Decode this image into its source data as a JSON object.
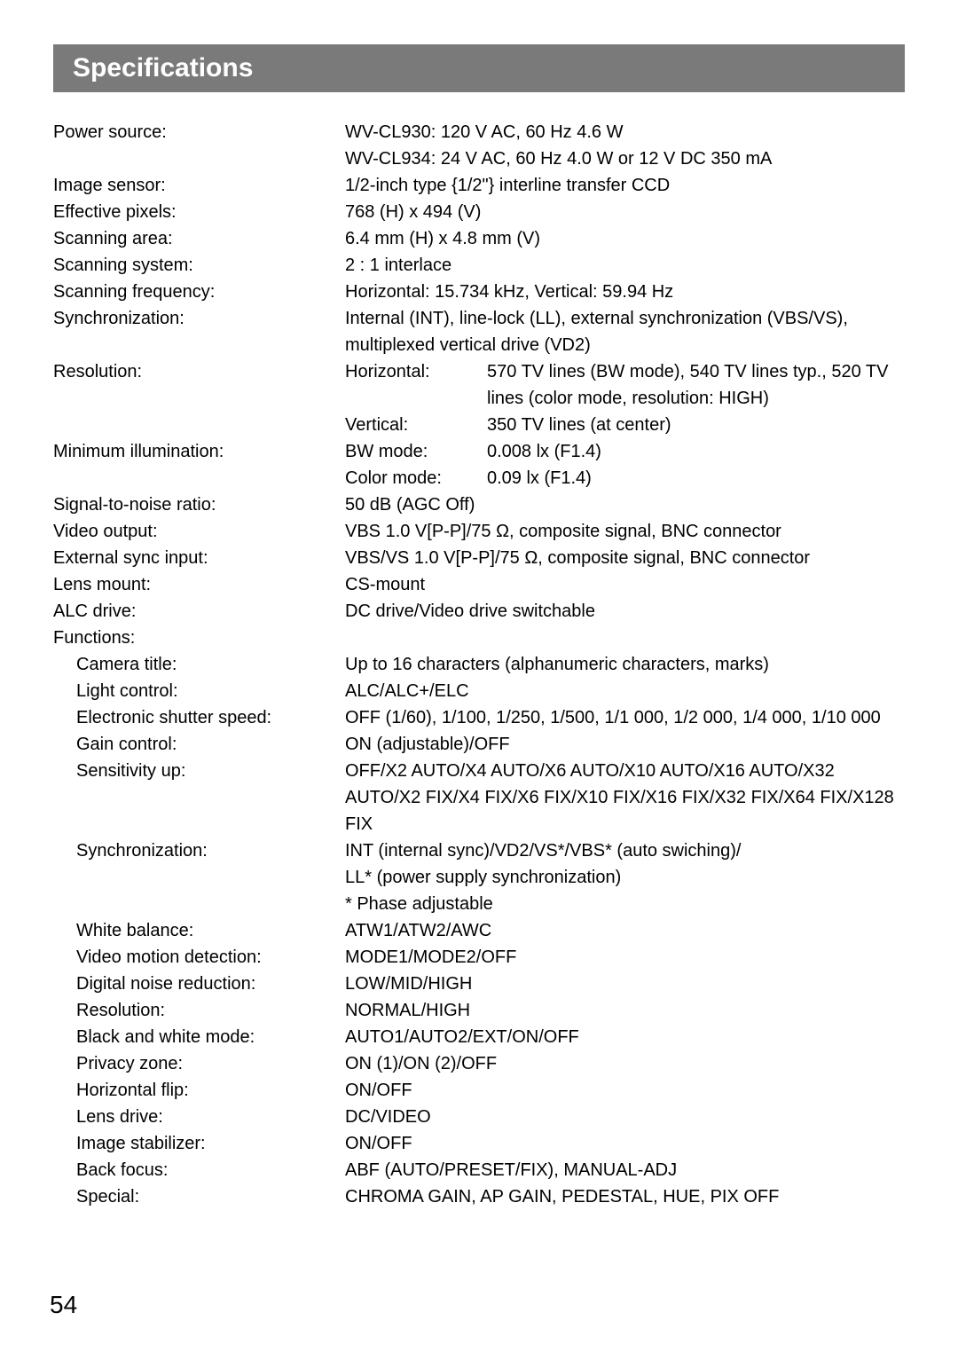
{
  "heading": "Specifications",
  "pageNumber": "54",
  "specs": [
    {
      "label": "Power source:",
      "value": "WV-CL930: 120 V AC, 60 Hz 4.6 W"
    },
    {
      "label": "",
      "value": "WV-CL934: 24 V AC, 60 Hz 4.0 W or 12 V DC 350 mA"
    },
    {
      "label": "Image sensor:",
      "value": "1/2-inch type {1/2\"} interline transfer CCD"
    },
    {
      "label": "Effective pixels:",
      "value": "768 (H) x 494 (V)"
    },
    {
      "label": "Scanning area:",
      "value": "6.4 mm (H) x 4.8 mm (V)"
    },
    {
      "label": "Scanning system:",
      "value": "2 : 1 interlace"
    },
    {
      "label": "Scanning frequency:",
      "value": "Horizontal: 15.734 kHz, Vertical: 59.94 Hz"
    },
    {
      "label": "Synchronization:",
      "value": "Internal (INT), line-lock (LL), external synchronization (VBS/VS), multiplexed vertical drive (VD2)"
    },
    {
      "label": "Resolution:",
      "sub": [
        {
          "sublabel": "Horizontal:",
          "subvalue": "570 TV lines (BW mode), 540 TV lines typ., 520 TV lines (color mode, resolution: HIGH)"
        },
        {
          "sublabel": "Vertical:",
          "subvalue": "350 TV lines (at center)"
        }
      ]
    },
    {
      "label": "Minimum illumination:",
      "sub": [
        {
          "sublabel": "BW mode:",
          "subvalue": "0.008 lx (F1.4)"
        },
        {
          "sublabel": "Color mode:",
          "subvalue": "0.09 lx (F1.4)"
        }
      ]
    },
    {
      "label": "Signal-to-noise ratio:",
      "value": "50 dB (AGC Off)"
    },
    {
      "label": "Video output:",
      "value": "VBS 1.0 V[P-P]/75 Ω, composite signal, BNC connector"
    },
    {
      "label": "External sync input:",
      "value": "VBS/VS 1.0 V[P-P]/75 Ω, composite signal, BNC connector"
    },
    {
      "label": "Lens mount:",
      "value": "CS-mount"
    },
    {
      "label": "ALC drive:",
      "value": "DC drive/Video drive switchable"
    },
    {
      "label": "Functions:",
      "value": ""
    },
    {
      "label": "Camera title:",
      "indent": true,
      "value": "Up to 16 characters (alphanumeric characters, marks)"
    },
    {
      "label": "Light control:",
      "indent": true,
      "value": "ALC/ALC+/ELC"
    },
    {
      "label": "Electronic shutter speed:",
      "indent": true,
      "value": "OFF (1/60), 1/100, 1/250, 1/500, 1/1 000, 1/2 000, 1/4 000, 1/10 000"
    },
    {
      "label": "Gain control:",
      "indent": true,
      "value": "ON (adjustable)/OFF"
    },
    {
      "label": "Sensitivity up:",
      "indent": true,
      "value": "OFF/X2 AUTO/X4 AUTO/X6 AUTO/X10 AUTO/X16 AUTO/X32 AUTO/X2 FIX/X4 FIX/X6 FIX/X10 FIX/X16 FIX/X32 FIX/X64 FIX/X128 FIX"
    },
    {
      "label": "Synchronization:",
      "indent": true,
      "value": "INT (internal sync)/VD2/VS*/VBS* (auto swiching)/\nLL* (power supply synchronization)\n* Phase adjustable"
    },
    {
      "label": "White balance:",
      "indent": true,
      "value": "ATW1/ATW2/AWC"
    },
    {
      "label": "Video motion detection:",
      "indent": true,
      "value": "MODE1/MODE2/OFF"
    },
    {
      "label": "Digital noise reduction:",
      "indent": true,
      "value": "LOW/MID/HIGH"
    },
    {
      "label": "Resolution:",
      "indent": true,
      "value": "NORMAL/HIGH"
    },
    {
      "label": "Black and white mode:",
      "indent": true,
      "value": "AUTO1/AUTO2/EXT/ON/OFF"
    },
    {
      "label": "Privacy zone:",
      "indent": true,
      "value": "ON (1)/ON (2)/OFF"
    },
    {
      "label": "Horizontal flip:",
      "indent": true,
      "value": "ON/OFF"
    },
    {
      "label": "Lens drive:",
      "indent": true,
      "value": "DC/VIDEO"
    },
    {
      "label": "Image stabilizer:",
      "indent": true,
      "value": "ON/OFF"
    },
    {
      "label": "Back focus:",
      "indent": true,
      "value": "ABF (AUTO/PRESET/FIX), MANUAL-ADJ"
    },
    {
      "label": "Special:",
      "indent": true,
      "value": "CHROMA GAIN, AP GAIN, PEDESTAL, HUE, PIX OFF"
    }
  ]
}
